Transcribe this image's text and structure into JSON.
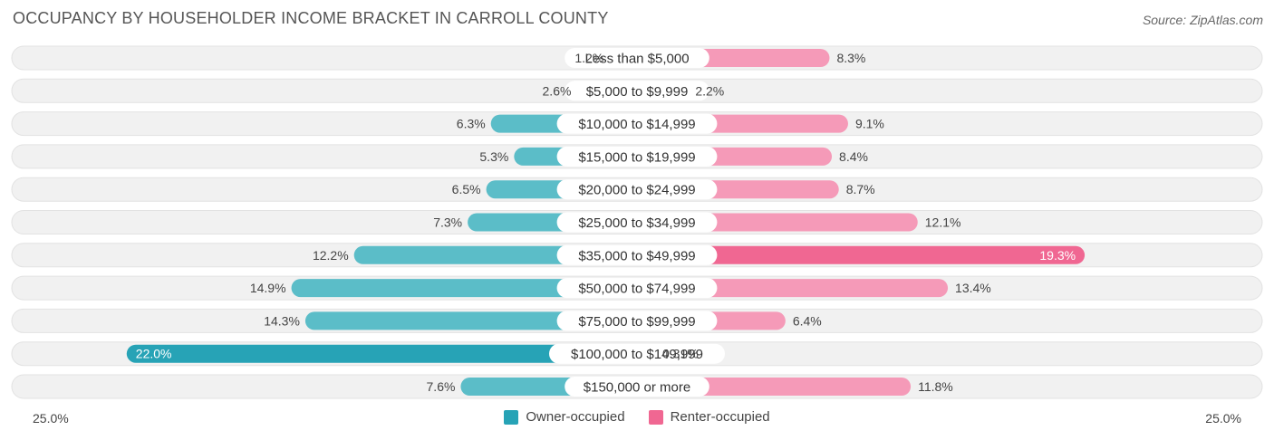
{
  "title": "OCCUPANCY BY HOUSEHOLDER INCOME BRACKET IN CARROLL COUNTY",
  "source": "Source: ZipAtlas.com",
  "colors": {
    "owner": "#5bbdc8",
    "owner_strong": "#27a3b6",
    "renter": "#f59ab8",
    "renter_strong": "#f06792",
    "row_bg": "#f0f0f0"
  },
  "axis": {
    "left_label": "25.0%",
    "right_label": "25.0%"
  },
  "legend": {
    "owner": "Owner-occupied",
    "renter": "Renter-occupied"
  },
  "chart_data": {
    "type": "bar",
    "orientation": "horizontal-diverging",
    "title": "OCCUPANCY BY HOUSEHOLDER INCOME BRACKET IN CARROLL COUNTY",
    "xlim": [
      -25,
      25
    ],
    "categories": [
      "Less than $5,000",
      "$5,000 to $9,999",
      "$10,000 to $14,999",
      "$15,000 to $19,999",
      "$20,000 to $24,999",
      "$25,000 to $34,999",
      "$35,000 to $49,999",
      "$50,000 to $74,999",
      "$75,000 to $99,999",
      "$100,000 to $149,999",
      "$150,000 or more"
    ],
    "series": [
      {
        "name": "Owner-occupied",
        "values": [
          1.2,
          2.6,
          6.3,
          5.3,
          6.5,
          7.3,
          12.2,
          14.9,
          14.3,
          22.0,
          7.6
        ],
        "labels": [
          "1.2%",
          "2.6%",
          "6.3%",
          "5.3%",
          "6.5%",
          "7.3%",
          "12.2%",
          "14.9%",
          "14.3%",
          "22.0%",
          "7.6%"
        ]
      },
      {
        "name": "Renter-occupied",
        "values": [
          8.3,
          2.2,
          9.1,
          8.4,
          8.7,
          12.1,
          19.3,
          13.4,
          6.4,
          0.31,
          11.8
        ],
        "labels": [
          "8.3%",
          "2.2%",
          "9.1%",
          "8.4%",
          "8.7%",
          "12.1%",
          "19.3%",
          "13.4%",
          "6.4%",
          "0.31%",
          "11.8%"
        ]
      }
    ]
  }
}
